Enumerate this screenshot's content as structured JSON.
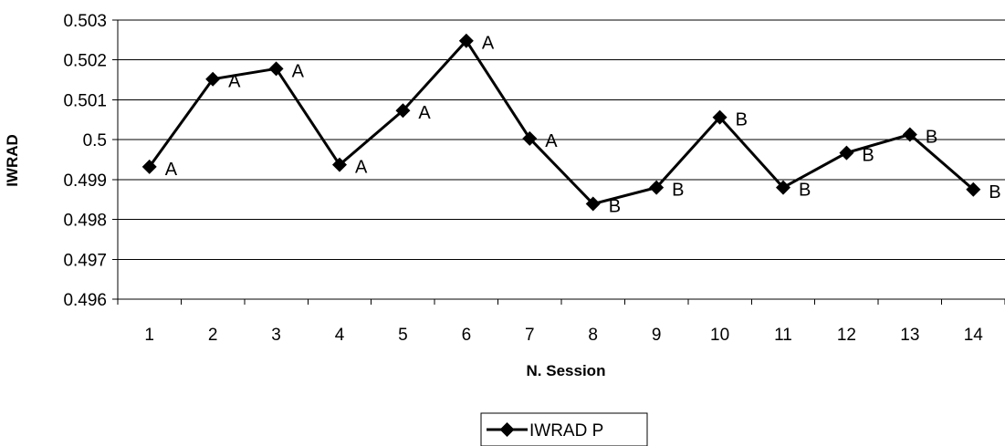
{
  "chart_data": {
    "type": "line",
    "title": "",
    "xlabel": "N. Session",
    "ylabel": "IWRAD",
    "ylim": [
      0.496,
      0.503
    ],
    "y_ticks": [
      "0.496",
      "0.497",
      "0.498",
      "0.499",
      "0.5",
      "0.501",
      "0.502",
      "0.503"
    ],
    "categories": [
      "1",
      "2",
      "3",
      "4",
      "5",
      "6",
      "7",
      "8",
      "9",
      "10",
      "11",
      "12",
      "13",
      "14"
    ],
    "grid": "horizontal",
    "legend_position": "bottom",
    "series": [
      {
        "name": "IWRAD P",
        "color": "#000000",
        "marker": "diamond",
        "values": [
          0.49932,
          0.50152,
          0.50178,
          0.49937,
          0.50073,
          0.50248,
          0.50003,
          0.49839,
          0.4988,
          0.50056,
          0.4988,
          0.49967,
          0.50013,
          0.49875
        ],
        "point_labels": [
          "A",
          "A",
          "A",
          "A",
          "A",
          "A",
          "A",
          "B",
          "B",
          "B",
          "B",
          "B",
          "B",
          "B"
        ]
      }
    ]
  }
}
